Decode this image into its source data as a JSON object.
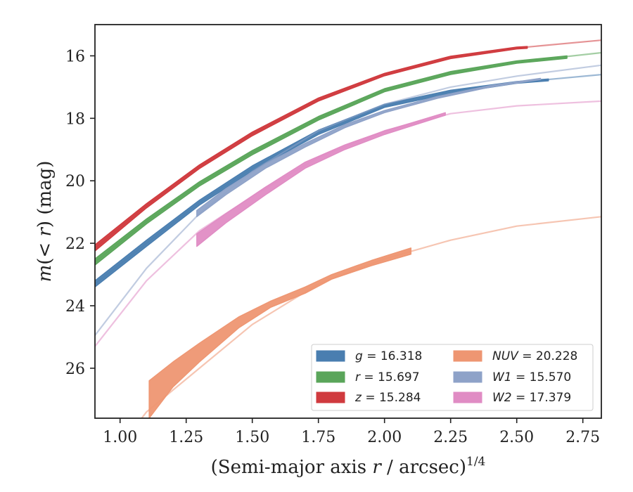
{
  "chart_data": {
    "type": "line",
    "xlabel_parts": {
      "prefix": "(Semi-major axis ",
      "var": "r",
      "suffix": " / arcsec)",
      "sup": "1/4"
    },
    "ylabel_parts": {
      "var1": "m",
      "mid": "(< ",
      "var2": "r",
      "suffix": ") (mag)"
    },
    "xlim": [
      0.905,
      2.82
    ],
    "ylim": [
      27.6,
      15.0
    ],
    "y_inverted": true,
    "xticks": [
      "1.00",
      "1.25",
      "1.50",
      "1.75",
      "2.00",
      "2.25",
      "2.50",
      "2.75"
    ],
    "xtick_values": [
      1.0,
      1.25,
      1.5,
      1.75,
      2.0,
      2.25,
      2.5,
      2.75
    ],
    "yticks": [
      "16",
      "18",
      "20",
      "22",
      "24",
      "26"
    ],
    "ytick_values": [
      16,
      18,
      20,
      22,
      24,
      26
    ],
    "grid": false,
    "legend_position": "lower-right",
    "legend_columns": 2,
    "series": [
      {
        "name": "g = 16.318",
        "label_var": "g",
        "label_value": "16.318",
        "label_italic": true,
        "color": "#4a7eb0",
        "fit_color": "#4a7eb0",
        "fit": {
          "x": [
            0.905,
            1.1,
            1.3,
            1.5,
            1.75,
            2.0,
            2.25,
            2.5,
            2.82
          ],
          "y": [
            23.3,
            22.0,
            20.7,
            19.6,
            18.45,
            17.6,
            17.15,
            16.85,
            16.6
          ]
        },
        "data": {
          "x": [
            0.905,
            1.1,
            1.3,
            1.5,
            1.75,
            2.0,
            2.25,
            2.5,
            2.62
          ],
          "y_upper": [
            23.2,
            21.9,
            20.62,
            19.52,
            18.38,
            17.55,
            17.1,
            16.82,
            16.74
          ],
          "y_lower": [
            23.4,
            22.1,
            20.78,
            19.68,
            18.52,
            17.65,
            17.2,
            16.88,
            16.8
          ]
        }
      },
      {
        "name": "r = 15.697",
        "label_var": "r",
        "label_value": "15.697",
        "label_italic": true,
        "color": "#5aa55a",
        "fit_color": "#5aa55a",
        "fit": {
          "x": [
            0.905,
            1.1,
            1.3,
            1.5,
            1.75,
            2.0,
            2.25,
            2.5,
            2.82
          ],
          "y": [
            22.6,
            21.3,
            20.1,
            19.1,
            18.0,
            17.1,
            16.55,
            16.2,
            15.9
          ]
        },
        "data": {
          "x": [
            0.905,
            1.1,
            1.3,
            1.5,
            1.75,
            2.0,
            2.25,
            2.5,
            2.69
          ],
          "y_upper": [
            22.5,
            21.22,
            20.03,
            19.03,
            17.94,
            17.05,
            16.5,
            16.16,
            16.0
          ],
          "y_lower": [
            22.7,
            21.38,
            20.17,
            19.17,
            18.06,
            17.15,
            16.6,
            16.24,
            16.08
          ]
        }
      },
      {
        "name": "z = 15.284",
        "label_var": "z",
        "label_value": "15.284",
        "label_italic": true,
        "color": "#d03a3e",
        "fit_color": "#d03a3e",
        "fit": {
          "x": [
            0.905,
            1.1,
            1.3,
            1.5,
            1.75,
            2.0,
            2.25,
            2.5,
            2.82
          ],
          "y": [
            22.15,
            20.8,
            19.55,
            18.5,
            17.4,
            16.6,
            16.05,
            15.75,
            15.5
          ]
        },
        "data": {
          "x": [
            0.905,
            1.1,
            1.3,
            1.5,
            1.75,
            2.0,
            2.25,
            2.5,
            2.54
          ],
          "y_upper": [
            22.05,
            20.73,
            19.49,
            18.44,
            17.35,
            16.56,
            16.01,
            15.72,
            15.7
          ],
          "y_lower": [
            22.25,
            20.87,
            19.61,
            18.56,
            17.45,
            16.64,
            16.09,
            15.78,
            15.76
          ]
        }
      },
      {
        "name": "NUV = 20.228",
        "label_var": "NUV",
        "label_value": "20.228",
        "label_italic": true,
        "color": "#ee9672",
        "fit_color": "#ee9672",
        "fit": {
          "x": [
            1.0,
            1.1,
            1.3,
            1.5,
            1.75,
            2.0,
            2.25,
            2.5,
            2.82
          ],
          "y": [
            28.5,
            27.4,
            26.0,
            24.6,
            23.3,
            22.5,
            21.9,
            21.45,
            21.15
          ]
        },
        "data": {
          "x": [
            1.11,
            1.2,
            1.3,
            1.45,
            1.57,
            1.7,
            1.8,
            1.95,
            2.1
          ],
          "y_upper": [
            26.4,
            25.8,
            25.2,
            24.35,
            23.85,
            23.4,
            23.0,
            22.55,
            22.15
          ],
          "y_lower": [
            27.6,
            26.6,
            25.8,
            24.7,
            24.05,
            23.6,
            23.15,
            22.72,
            22.35
          ]
        }
      },
      {
        "name": "W1 = 15.570",
        "label_var": "W1",
        "label_value": "15.570",
        "label_italic": true,
        "color": "#8ea2c8",
        "fit_color": "#8ea2c8",
        "fit": {
          "x": [
            0.905,
            1.1,
            1.3,
            1.5,
            1.75,
            2.0,
            2.25,
            2.5,
            2.82
          ],
          "y": [
            24.95,
            22.8,
            21.05,
            19.7,
            18.4,
            17.55,
            17.0,
            16.65,
            16.3
          ]
        },
        "data": {
          "x": [
            1.29,
            1.4,
            1.55,
            1.7,
            1.85,
            2.0,
            2.2,
            2.4,
            2.59
          ],
          "y_upper": [
            20.95,
            20.25,
            19.45,
            18.8,
            18.2,
            17.75,
            17.3,
            16.95,
            16.72
          ],
          "y_lower": [
            21.15,
            20.45,
            19.6,
            18.92,
            18.3,
            17.82,
            17.36,
            17.0,
            16.76
          ]
        }
      },
      {
        "name": "W2 = 17.379",
        "label_var": "W2",
        "label_value": "17.379",
        "label_italic": true,
        "color": "#e08cc4",
        "fit_color": "#e08cc4",
        "fit": {
          "x": [
            0.905,
            1.1,
            1.3,
            1.5,
            1.75,
            2.0,
            2.25,
            2.5,
            2.82
          ],
          "y": [
            25.3,
            23.2,
            21.6,
            20.5,
            19.25,
            18.4,
            17.85,
            17.6,
            17.45
          ]
        },
        "data": {
          "x": [
            1.29,
            1.4,
            1.55,
            1.7,
            1.85,
            2.0,
            2.1,
            2.23
          ],
          "y_upper": [
            21.7,
            21.05,
            20.2,
            19.4,
            18.85,
            18.4,
            18.15,
            17.82
          ],
          "y_lower": [
            22.1,
            21.35,
            20.45,
            19.6,
            19.0,
            18.52,
            18.25,
            17.9
          ]
        }
      }
    ]
  }
}
